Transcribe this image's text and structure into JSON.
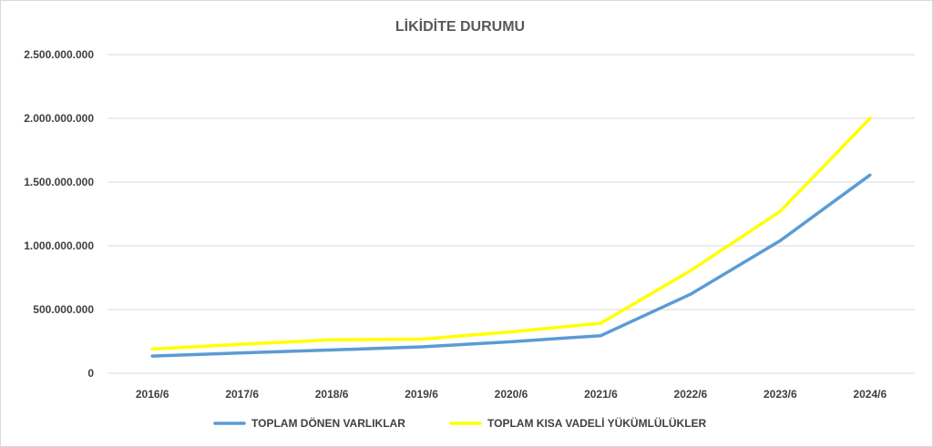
{
  "chart_data": {
    "type": "line",
    "title": "LİKİDİTE DURUMU",
    "xlabel": "",
    "ylabel": "",
    "categories": [
      "2016/6",
      "2017/6",
      "2018/6",
      "2019/6",
      "2020/6",
      "2021/6",
      "2022/6",
      "2023/6",
      "2024/6"
    ],
    "ylim": [
      0,
      2500000000
    ],
    "yticks": [
      0,
      500000000,
      1000000000,
      1500000000,
      2000000000,
      2500000000
    ],
    "ytick_labels": [
      "0",
      "500.000.000",
      "1.000.000.000",
      "1.500.000.000",
      "2.000.000.000",
      "2.500.000.000"
    ],
    "grid": true,
    "legend_position": "bottom",
    "series": [
      {
        "name": "TOPLAM DÖNEN VARLIKLAR",
        "color": "#5b9bd5",
        "values": [
          135000000,
          160000000,
          183000000,
          207000000,
          247000000,
          295000000,
          620000000,
          1040000000,
          1555000000
        ]
      },
      {
        "name": "TOPLAM KISA VADELİ YÜKÜMLÜLÜKLER",
        "color": "#ffff00",
        "values": [
          190000000,
          228000000,
          262000000,
          268000000,
          325000000,
          393000000,
          805000000,
          1270000000,
          2000000000
        ]
      }
    ]
  }
}
